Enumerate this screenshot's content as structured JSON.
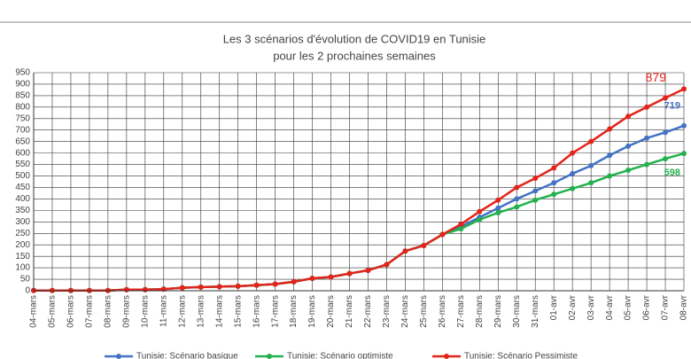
{
  "chart_data": {
    "type": "line",
    "title": "Les 3 scénarios d'évolution de COVID19 en Tunisie",
    "subtitle": "pour les 2 prochaines semaines",
    "categories": [
      "04-mars",
      "05-mars",
      "06-mars",
      "07-mars",
      "08-mars",
      "09-mars",
      "10-mars",
      "11-mars",
      "12-mars",
      "13-mars",
      "14-mars",
      "15-mars",
      "16-mars",
      "17-mars",
      "18-mars",
      "19-mars",
      "20-mars",
      "21-mars",
      "22-mars",
      "23-mars",
      "24-mars",
      "25-mars",
      "26-mars",
      "27-mars",
      "28-mars",
      "29-mars",
      "30-mars",
      "31-mars",
      "01-avr",
      "02-avr",
      "03-avr",
      "04-avr",
      "05-avr",
      "06-avr",
      "07-avr",
      "08-avr"
    ],
    "series": [
      {
        "name": "Tunisie: Scénario basique",
        "color": "#4472c4",
        "values": [
          1,
          1,
          1,
          1,
          1,
          5,
          5,
          7,
          13,
          16,
          18,
          20,
          24,
          29,
          39,
          54,
          60,
          75,
          89,
          114,
          173,
          197,
          245,
          280,
          320,
          360,
          400,
          435,
          470,
          510,
          545,
          590,
          630,
          665,
          690,
          719
        ]
      },
      {
        "name": "Tunisie: Scénario optimiste",
        "color": "#22b14c",
        "values": [
          1,
          1,
          1,
          1,
          1,
          5,
          5,
          7,
          13,
          16,
          18,
          20,
          24,
          29,
          39,
          54,
          60,
          75,
          89,
          114,
          173,
          197,
          245,
          270,
          310,
          340,
          365,
          395,
          420,
          445,
          470,
          500,
          525,
          550,
          575,
          598
        ]
      },
      {
        "name": "Tunisie: Scénario Pessimiste",
        "color": "#e3241b",
        "values": [
          1,
          1,
          1,
          1,
          1,
          5,
          5,
          7,
          13,
          16,
          18,
          20,
          24,
          29,
          39,
          54,
          60,
          75,
          89,
          114,
          173,
          197,
          245,
          290,
          345,
          395,
          450,
          490,
          535,
          600,
          650,
          705,
          760,
          800,
          840,
          879
        ]
      }
    ],
    "ylim": [
      0,
      950
    ],
    "yticks": [
      0,
      50,
      100,
      150,
      200,
      250,
      300,
      350,
      400,
      450,
      500,
      550,
      600,
      650,
      700,
      750,
      800,
      850,
      900,
      950
    ],
    "grid": true,
    "legend": "bottom"
  }
}
